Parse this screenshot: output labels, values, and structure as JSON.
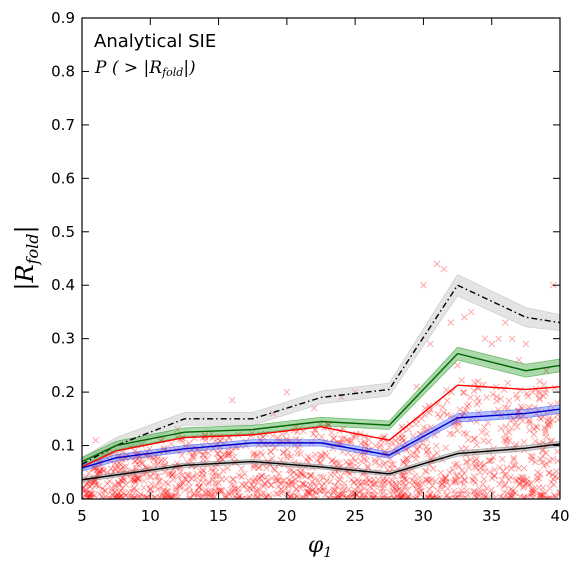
{
  "chart_data": {
    "type": "line",
    "title": "",
    "xlabel": "φ",
    "xlabel_sub": "1",
    "ylabel": "|R",
    "ylabel_sub": "fold",
    "ylabel_end": "|",
    "xlim": [
      5,
      40
    ],
    "ylim": [
      0,
      0.9
    ],
    "xticks": [
      5,
      10,
      15,
      20,
      25,
      30,
      35,
      40
    ],
    "xtick_labels": [
      "5",
      "10",
      "15",
      "20",
      "25",
      "30",
      "35",
      "40"
    ],
    "yticks": [
      0,
      0.1,
      0.2,
      0.3,
      0.4,
      0.5,
      0.6,
      0.7,
      0.8,
      0.9
    ],
    "ytick_labels": [
      "0.0",
      "0.1",
      "0.2",
      "0.3",
      "0.4",
      "0.5",
      "0.6",
      "0.7",
      "0.8",
      "0.9"
    ],
    "grid": false,
    "annotations": {
      "line1": "Analytical SIE",
      "line2": "P ( > |R",
      "line2_sub": "fold",
      "line2_end": "|)"
    },
    "x": [
      5,
      7.5,
      12.5,
      17.5,
      22.5,
      27.5,
      32.5,
      37.5,
      40
    ],
    "series": [
      {
        "color": "#000000",
        "style": "dashdot",
        "band_color": "#bbbbbb",
        "values": [
          0.065,
          0.1,
          0.15,
          0.15,
          0.19,
          0.205,
          0.4,
          0.34,
          0.33
        ],
        "band": [
          0.012,
          0.015,
          0.012,
          0.012,
          0.012,
          0.012,
          0.02,
          0.018,
          0.015
        ]
      },
      {
        "color": "#006400",
        "style": "solid",
        "band_color": "#2ca02c",
        "values": [
          0.07,
          0.1,
          0.125,
          0.13,
          0.145,
          0.138,
          0.272,
          0.24,
          0.25
        ],
        "band": [
          0.008,
          0.008,
          0.008,
          0.008,
          0.008,
          0.008,
          0.012,
          0.012,
          0.012
        ]
      },
      {
        "color": "#ff0000",
        "style": "solid",
        "band_color": "",
        "values": [
          0.06,
          0.09,
          0.115,
          0.12,
          0.135,
          0.11,
          0.213,
          0.205,
          0.21
        ],
        "band": []
      },
      {
        "color": "#0000cc",
        "style": "solid",
        "band_color": "#4466ff",
        "values": [
          0.058,
          0.077,
          0.094,
          0.105,
          0.105,
          0.082,
          0.152,
          0.16,
          0.168
        ],
        "band": [
          0.006,
          0.006,
          0.006,
          0.006,
          0.006,
          0.006,
          0.008,
          0.008,
          0.008
        ]
      },
      {
        "color": "#000000",
        "style": "solid",
        "band_color": "#888888",
        "values": [
          0.036,
          0.045,
          0.063,
          0.07,
          0.06,
          0.047,
          0.085,
          0.095,
          0.103
        ],
        "band": [
          0.004,
          0.004,
          0.004,
          0.004,
          0.004,
          0.004,
          0.005,
          0.005,
          0.005
        ]
      }
    ],
    "scatter": {
      "marker": "x",
      "color": "#ff0000",
      "alpha": 0.35,
      "points": [
        [
          6,
          0.11
        ],
        [
          7,
          0.085
        ],
        [
          8,
          0.06
        ],
        [
          9,
          0.04
        ],
        [
          10,
          0.02
        ],
        [
          11,
          0.09
        ],
        [
          12,
          0.13
        ],
        [
          13,
          0.07
        ],
        [
          14,
          0.12
        ],
        [
          15,
          0.03
        ],
        [
          16,
          0.185
        ],
        [
          17,
          0.1
        ],
        [
          18,
          0.06
        ],
        [
          19,
          0.16
        ],
        [
          20,
          0.2
        ],
        [
          21,
          0.05
        ],
        [
          22,
          0.17
        ],
        [
          23,
          0.14
        ],
        [
          24,
          0.19
        ],
        [
          25,
          0.2
        ],
        [
          26,
          0.09
        ],
        [
          27,
          0.02
        ],
        [
          27.5,
          0.05
        ],
        [
          28,
          0.015
        ],
        [
          29,
          0.14
        ],
        [
          29.5,
          0.21
        ],
        [
          30,
          0.4
        ],
        [
          30.5,
          0.29
        ],
        [
          31,
          0.44
        ],
        [
          31.5,
          0.43
        ],
        [
          32,
          0.33
        ],
        [
          32.5,
          0.25
        ],
        [
          33,
          0.34
        ],
        [
          33.5,
          0.35
        ],
        [
          34,
          0.22
        ],
        [
          34.5,
          0.3
        ],
        [
          35,
          0.29
        ],
        [
          35.5,
          0.3
        ],
        [
          36,
          0.33
        ],
        [
          36.5,
          0.3
        ],
        [
          37,
          0.26
        ],
        [
          37.5,
          0.29
        ],
        [
          38,
          0.2
        ],
        [
          38.5,
          0.22
        ],
        [
          39,
          0.24
        ],
        [
          39.5,
          0.4
        ],
        [
          39.8,
          0.18
        ]
      ]
    }
  }
}
